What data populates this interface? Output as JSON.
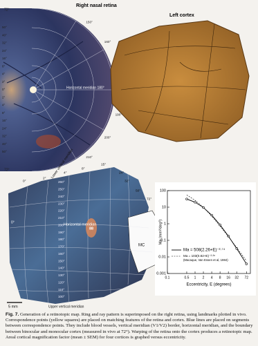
{
  "figure": {
    "retina_title": "Right nasal retina",
    "cortex_title": "Left cortex",
    "horizontal_meridian": "Horizontal meridian 180°",
    "top_label": "72°",
    "bottom_label": "72°",
    "left_eccentricities": [
      "50°",
      "40°",
      "32°",
      "24°",
      "16°",
      "8°",
      "4°",
      "2°",
      "0°",
      "2°",
      "4°",
      "8°",
      "16°",
      "24°",
      "32°",
      "40°",
      "50°"
    ],
    "right_angles": [
      "150°",
      "160°",
      "170°",
      "190°",
      "200°",
      "210°"
    ],
    "lower": {
      "lower_vertical_meridian": "Lower vertical meridian",
      "eccentricities": [
        "0°",
        "2°",
        "4°",
        "8°",
        "15°",
        "24°",
        "32°",
        "50°",
        "72°"
      ],
      "origin": "0°",
      "horizontal_meridian": "Horizontal meridian",
      "center": "88",
      "monocular": "MC",
      "upper_vertical_meridian": "Upper vertical meridian",
      "angles": [
        "260°",
        "250°",
        "240°",
        "230°",
        "220°",
        "210°",
        "200°",
        "190°",
        "180°",
        "170°",
        "160°",
        "150°",
        "140°",
        "130°",
        "120°",
        "110°",
        "100°"
      ]
    },
    "scale_bar": "5 mm"
  },
  "chart_data": {
    "type": "line",
    "y_label": "Ma (mm²/deg²)",
    "x_label": "Eccentricity, E (degrees)",
    "log_x": true,
    "log_y": true,
    "x": [
      0.5,
      1,
      2,
      4,
      8,
      16,
      32,
      72
    ],
    "series": [
      {
        "name": "Ma = 508(2.26+E)⁻²·⁷⁴",
        "color": "#000000",
        "dashed": false,
        "markers": true,
        "values": [
          31,
          20,
          9.6,
          3.3,
          0.86,
          0.18,
          0.032,
          0.0038
        ]
      },
      {
        "name": "Ma = 103(0.82+E)⁻²·²⁸",
        "color": "#000000",
        "dashed": true,
        "markers": false,
        "values": [
          55,
          26,
          9.7,
          2.9,
          0.72,
          0.17,
          0.036,
          0.0058
        ]
      }
    ],
    "legend_note": "(Macaque, Van Essen et al, 1984)",
    "xlim": [
      0.1,
      100
    ],
    "xticks": [
      0.1,
      0.5,
      1,
      2,
      4,
      8,
      16,
      32,
      72
    ],
    "ylim": [
      0.001,
      100
    ],
    "yticks": [
      100,
      10,
      1,
      0.1,
      0.01,
      0.001
    ]
  },
  "caption": {
    "label": "Fig. 7.",
    "text": "Generation of a retinotopic map. Ring and ray pattern is superimposed on the right retina, using landmarks plotted in vivo. Correspondence points (yellow squares) are placed on matching features of the retina and cortex. Blue lines are placed on segments between correspondence points. They include blood vessels, vertical meridian (V1/V2) border, horizontal meridian, and the boundary between binocular and monocular cortex (measured in vivo at 72°). Warping of the retina onto the cortex produces a retinotopic map. Areal cortical magnification factor (mean ± SEM) for four cortices is graphed versus eccentricity."
  }
}
